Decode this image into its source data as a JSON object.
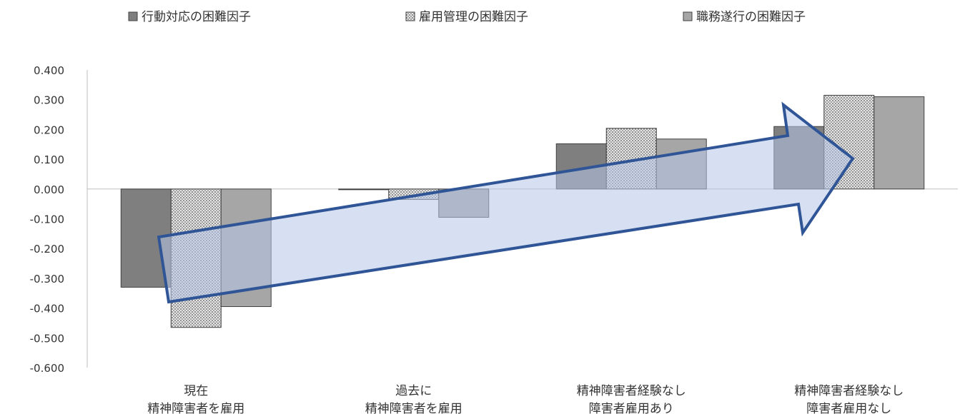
{
  "chart_data": {
    "type": "bar",
    "categories": [
      [
        "現在",
        "精神障害者を雇用"
      ],
      [
        "過去に",
        "精神障害者を雇用"
      ],
      [
        "精神障害者経験なし",
        "障害者雇用あり"
      ],
      [
        "精神障害者経験なし",
        "障害者雇用なし"
      ]
    ],
    "series": [
      {
        "name": "行動対応の困難因子",
        "values": [
          -0.33,
          -0.002,
          0.152,
          0.21
        ],
        "color": "#7f7f7f",
        "pattern": "solid"
      },
      {
        "name": "雇用管理の困難因子",
        "values": [
          -0.465,
          -0.035,
          0.204,
          0.315
        ],
        "color": "#d4d4d4",
        "pattern": "dots"
      },
      {
        "name": "職務遂行の困難因子",
        "values": [
          -0.395,
          -0.095,
          0.168,
          0.31
        ],
        "color": "#a6a6a6",
        "pattern": "solid"
      }
    ],
    "yticks": [
      "0.400",
      "0.300",
      "0.200",
      "0.100",
      "0.000",
      "-0.100",
      "-0.200",
      "-0.300",
      "-0.400",
      "-0.500",
      "-0.600"
    ],
    "ylim": [
      -0.6,
      0.4
    ],
    "legend_position": "top",
    "grid": false,
    "annotation": {
      "type": "arrow",
      "direction": "upward trend",
      "fill": "#b4c7e7",
      "stroke": "#2f5597"
    }
  }
}
